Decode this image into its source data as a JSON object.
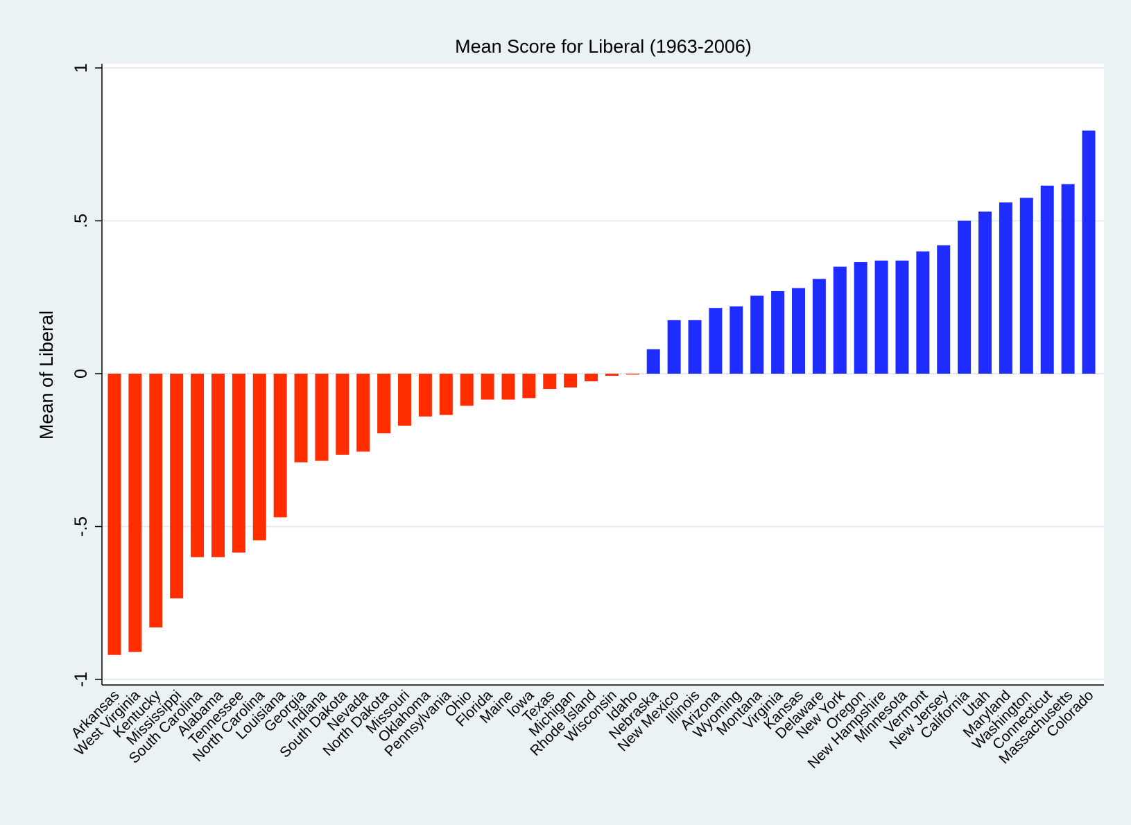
{
  "chart_data": {
    "type": "bar",
    "title": "Mean Score for Liberal (1963-2006)",
    "xlabel": "",
    "ylabel": "Mean of Liberal",
    "ylim": [
      -1,
      1
    ],
    "yticks": [
      {
        "value": -1,
        "label": "-1"
      },
      {
        "value": -0.5,
        "label": "-.5"
      },
      {
        "value": 0,
        "label": "0"
      },
      {
        "value": 0.5,
        "label": ".5"
      },
      {
        "value": 1,
        "label": "1"
      }
    ],
    "grid": true,
    "legend": "none",
    "colors": {
      "negative": "#ff2d00",
      "positive": "#1f2cff",
      "plot_background": "#ffffff",
      "background": "#eaf2f3",
      "grid": "#e4ecee"
    },
    "categories": [
      "Arkansas",
      "West Virginia",
      "Kentucky",
      "Mississippi",
      "South Carolina",
      "Alabama",
      "Tennessee",
      "North Carolina",
      "Louisiana",
      "Georgia",
      "Indiana",
      "South Dakota",
      "Nevada",
      "North Dakota",
      "Missouri",
      "Oklahoma",
      "Pennsylvania",
      "Ohio",
      "Florida",
      "Maine",
      "Iowa",
      "Texas",
      "Michigan",
      "Rhode Island",
      "Wisconsin",
      "Idaho",
      "Nebraska",
      "New Mexico",
      "Illinois",
      "Arizona",
      "Wyoming",
      "Montana",
      "Virginia",
      "Kansas",
      "Delaware",
      "New York",
      "Oregon",
      "New Hampshire",
      "Minnesota",
      "Vermont",
      "New Jersey",
      "California",
      "Utah",
      "Maryland",
      "Washington",
      "Connecticut",
      "Massachusetts",
      "Colorado"
    ],
    "values": [
      -0.92,
      -0.91,
      -0.83,
      -0.735,
      -0.6,
      -0.6,
      -0.585,
      -0.545,
      -0.47,
      -0.29,
      -0.285,
      -0.265,
      -0.255,
      -0.195,
      -0.17,
      -0.14,
      -0.135,
      -0.105,
      -0.085,
      -0.085,
      -0.08,
      -0.05,
      -0.045,
      -0.025,
      -0.007,
      -0.003,
      0.08,
      0.175,
      0.175,
      0.215,
      0.22,
      0.255,
      0.27,
      0.28,
      0.31,
      0.35,
      0.365,
      0.37,
      0.37,
      0.4,
      0.42,
      0.5,
      0.53,
      0.56,
      0.575,
      0.615,
      0.62,
      0.795
    ]
  }
}
